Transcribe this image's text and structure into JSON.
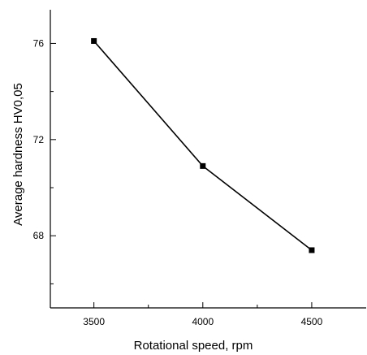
{
  "chart_data": {
    "type": "line",
    "title": "",
    "xlabel": "Rotational speed, rpm",
    "ylabel": "Average hardness HV0,05",
    "xlim": [
      3300,
      4750
    ],
    "ylim": [
      65,
      77.4
    ],
    "x_ticks": [
      3500,
      4000,
      4500
    ],
    "x_tick_labels": [
      "3500",
      "4000",
      "4500"
    ],
    "x_minor_ticks": [
      3750,
      4250
    ],
    "y_ticks": [
      68,
      72,
      76
    ],
    "y_tick_labels": [
      "68",
      "72",
      "76"
    ],
    "y_minor_ticks": [
      66,
      70,
      74
    ],
    "grid": false,
    "series": [
      {
        "x": [
          3500,
          4000,
          4500
        ],
        "y": [
          76.1,
          70.9,
          67.4
        ],
        "color": "#000000",
        "marker": "square"
      }
    ]
  }
}
